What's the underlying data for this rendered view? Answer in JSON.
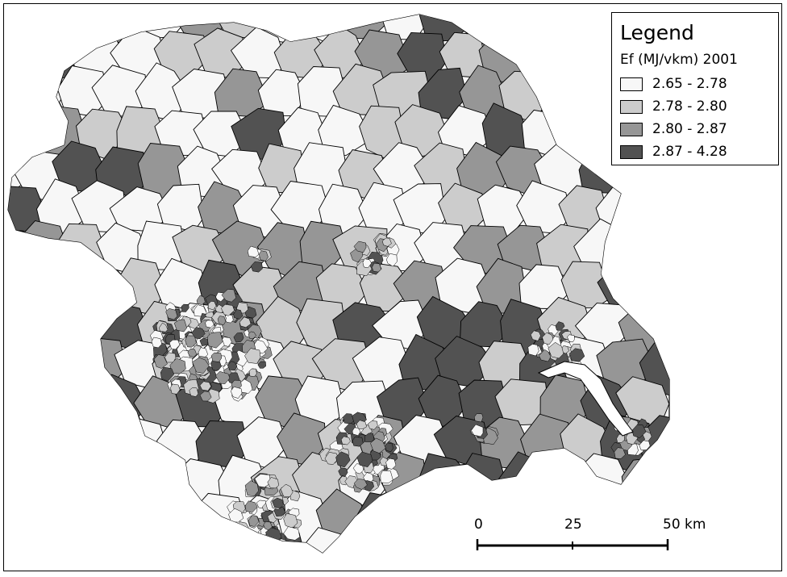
{
  "legend": {
    "title": "Legend",
    "subtitle": "Ef (MJ/vkm) 2001",
    "classes": [
      {
        "label": "2.65 - 2.78",
        "color": "#f7f7f7"
      },
      {
        "label": "2.78 - 2.80",
        "color": "#cccccc"
      },
      {
        "label": "2.80 - 2.87",
        "color": "#969696"
      },
      {
        "label": "2.87 - 4.28",
        "color": "#525252"
      }
    ]
  },
  "scale_bar": {
    "labels": [
      "0",
      "25",
      "50 km"
    ]
  },
  "map_colors": {
    "water": "#ffffff",
    "outline": "#000000"
  }
}
